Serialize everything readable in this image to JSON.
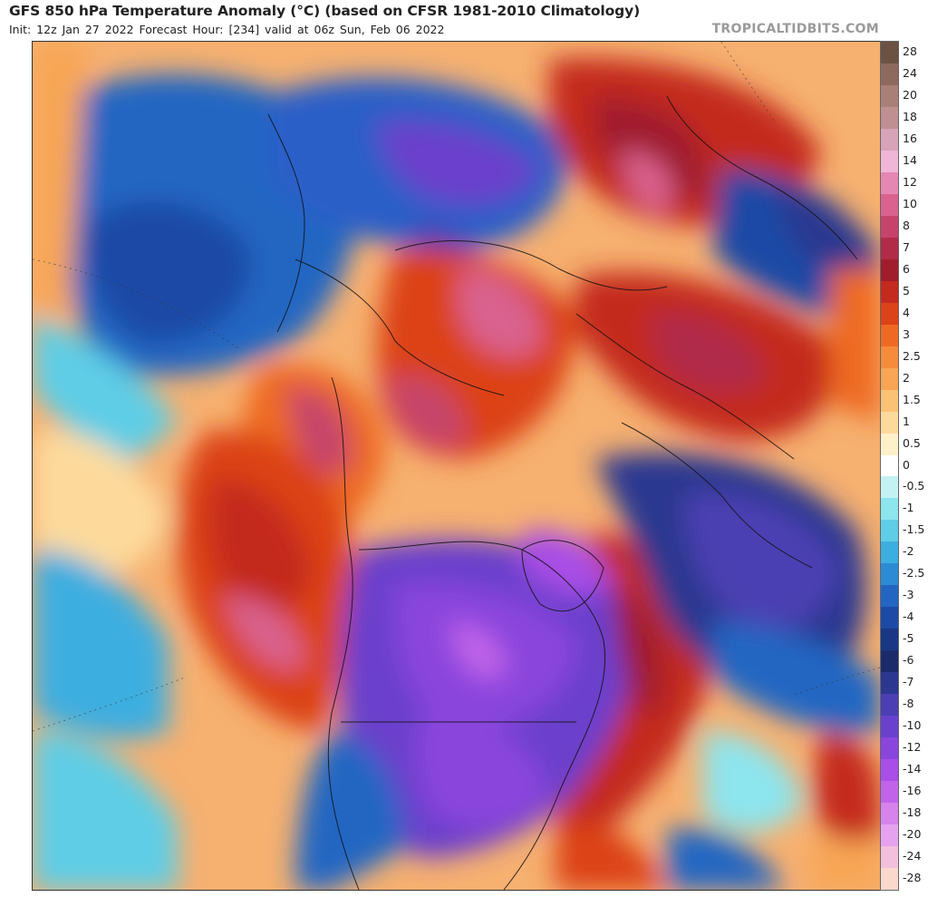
{
  "header": {
    "title": "GFS 850 hPa Temperature Anomaly (°C) (based on CFSR 1981-2010 Climatology)",
    "subtitle": "Init: 12z Jan 27 2022   Forecast Hour: [234]   valid at 06z Sun, Feb 06 2022",
    "brand": "TROPICALTIDBITS.COM"
  },
  "map": {
    "projection": "polar stereographic (North Pole)",
    "variable": "850 hPa temperature anomaly"
  },
  "colorbar": {
    "unit": "°C",
    "levels": [
      {
        "label": "28",
        "color": "#6b5242"
      },
      {
        "label": "24",
        "color": "#8e6a5e"
      },
      {
        "label": "20",
        "color": "#a98078"
      },
      {
        "label": "18",
        "color": "#c08f92"
      },
      {
        "label": "16",
        "color": "#d7a3b8"
      },
      {
        "label": "14",
        "color": "#efb6d7"
      },
      {
        "label": "12",
        "color": "#e587b3"
      },
      {
        "label": "10",
        "color": "#d9628e"
      },
      {
        "label": "8",
        "color": "#c6446b"
      },
      {
        "label": "7",
        "color": "#b02c49"
      },
      {
        "label": "6",
        "color": "#a01d2d"
      },
      {
        "label": "5",
        "color": "#c42a1e"
      },
      {
        "label": "4",
        "color": "#dc4319"
      },
      {
        "label": "3",
        "color": "#ee6a24"
      },
      {
        "label": "2.5",
        "color": "#f58b3b"
      },
      {
        "label": "2",
        "color": "#f8a654"
      },
      {
        "label": "1.5",
        "color": "#fbc276"
      },
      {
        "label": "1",
        "color": "#fdda9c"
      },
      {
        "label": "0.5",
        "color": "#fef0c8"
      },
      {
        "label": "0",
        "color": "#ffffff"
      },
      {
        "label": "-0.5",
        "color": "#c4f2f3"
      },
      {
        "label": "-1",
        "color": "#8de5ee"
      },
      {
        "label": "-1.5",
        "color": "#5fcde6"
      },
      {
        "label": "-2",
        "color": "#3daee0"
      },
      {
        "label": "-2.5",
        "color": "#2b8bd3"
      },
      {
        "label": "-3",
        "color": "#2266c2"
      },
      {
        "label": "-4",
        "color": "#1d4aa6"
      },
      {
        "label": "-5",
        "color": "#1a3785"
      },
      {
        "label": "-6",
        "color": "#1b2b6a"
      },
      {
        "label": "-7",
        "color": "#2c3890"
      },
      {
        "label": "-8",
        "color": "#4b3fb3"
      },
      {
        "label": "-10",
        "color": "#6a41cc"
      },
      {
        "label": "-12",
        "color": "#8a45dd"
      },
      {
        "label": "-14",
        "color": "#a94ee6"
      },
      {
        "label": "-16",
        "color": "#c164e9"
      },
      {
        "label": "-18",
        "color": "#d683ec"
      },
      {
        "label": "-20",
        "color": "#e7a2ef"
      },
      {
        "label": "-24",
        "color": "#f2bfdc"
      },
      {
        "label": "-28",
        "color": "#fbd8cc"
      }
    ]
  }
}
